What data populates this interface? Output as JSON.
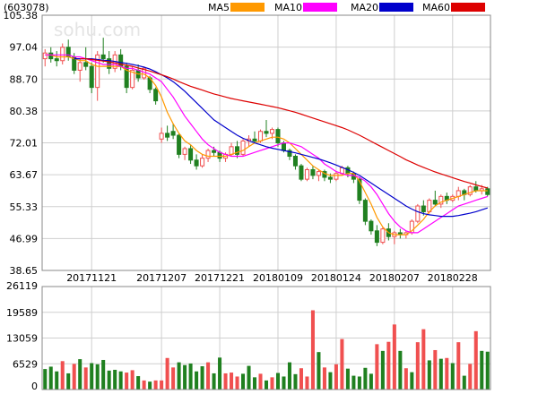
{
  "chart_data": [
    {
      "type": "candlestick",
      "code": "(603078)",
      "watermark": "sohu.com",
      "ylim": [
        38.65,
        105.38
      ],
      "ytick_labels": [
        "105.38",
        "97.04",
        "88.70",
        "80.38",
        "72.01",
        "63.67",
        "55.33",
        "46.99",
        "38.65"
      ],
      "xtick_labels": [
        "20171121",
        "20171207",
        "20171221",
        "20180109",
        "20180124",
        "20180207",
        "20180228"
      ],
      "xtick_index": [
        8,
        20,
        30,
        40,
        50,
        60,
        70
      ],
      "up_color": "#f05050",
      "down_color": "#208020",
      "ohlc": [
        [
          94.0,
          96.5,
          92.0,
          95.5
        ],
        [
          95.5,
          97.0,
          93.0,
          94.0
        ],
        [
          94.0,
          96.0,
          92.0,
          93.5
        ],
        [
          93.5,
          98.0,
          92.5,
          97.0
        ],
        [
          97.0,
          99.0,
          93.5,
          94.5
        ],
        [
          94.5,
          95.5,
          90.0,
          91.0
        ],
        [
          91.0,
          94.0,
          88.0,
          93.0
        ],
        [
          93.0,
          97.0,
          91.0,
          92.0
        ],
        [
          92.0,
          93.0,
          85.0,
          86.5
        ],
        [
          86.5,
          96.0,
          83.0,
          95.0
        ],
        [
          95.0,
          99.5,
          93.0,
          94.0
        ],
        [
          94.0,
          96.0,
          90.0,
          91.5
        ],
        [
          91.5,
          96.0,
          90.5,
          95.0
        ],
        [
          95.0,
          96.5,
          91.0,
          92.0
        ],
        [
          92.0,
          93.0,
          85.0,
          86.5
        ],
        [
          86.5,
          92.0,
          86.0,
          91.0
        ],
        [
          91.0,
          92.5,
          88.0,
          89.0
        ],
        [
          89.0,
          92.0,
          88.5,
          91.5
        ],
        [
          89.0,
          89.5,
          85.0,
          86.0
        ],
        [
          86.0,
          86.5,
          82.0,
          83.0
        ],
        [
          73.0,
          76.0,
          72.0,
          74.5
        ],
        [
          74.5,
          76.5,
          72.5,
          73.5
        ],
        [
          75.0,
          77.0,
          73.0,
          74.0
        ],
        [
          74.0,
          74.5,
          68.0,
          69.0
        ],
        [
          69.0,
          71.0,
          67.5,
          70.5
        ],
        [
          70.5,
          71.5,
          66.5,
          67.5
        ],
        [
          67.5,
          69.0,
          65.0,
          66.0
        ],
        [
          66.0,
          69.0,
          65.5,
          68.0
        ],
        [
          68.0,
          70.5,
          67.0,
          70.0
        ],
        [
          70.0,
          71.0,
          68.5,
          69.5
        ],
        [
          69.5,
          70.0,
          67.0,
          68.0
        ],
        [
          68.0,
          69.5,
          67.0,
          69.0
        ],
        [
          69.0,
          72.0,
          68.5,
          71.0
        ],
        [
          71.0,
          72.5,
          68.0,
          69.0
        ],
        [
          69.0,
          73.0,
          68.5,
          72.5
        ],
        [
          72.5,
          74.0,
          71.0,
          73.0
        ],
        [
          73.0,
          75.0,
          72.0,
          72.5
        ],
        [
          72.5,
          75.5,
          72.0,
          75.0
        ],
        [
          75.0,
          78.0,
          73.5,
          74.5
        ],
        [
          74.5,
          76.0,
          73.0,
          75.5
        ],
        [
          75.5,
          76.0,
          71.0,
          72.0
        ],
        [
          72.0,
          72.5,
          69.5,
          70.0
        ],
        [
          70.0,
          70.5,
          67.5,
          68.5
        ],
        [
          68.5,
          69.0,
          65.0,
          66.0
        ],
        [
          66.0,
          66.5,
          62.0,
          62.5
        ],
        [
          62.5,
          65.5,
          62.0,
          65.0
        ],
        [
          65.0,
          66.0,
          62.5,
          63.5
        ],
        [
          63.5,
          65.0,
          62.0,
          64.5
        ],
        [
          64.5,
          65.0,
          62.0,
          63.0
        ],
        [
          63.0,
          64.0,
          61.5,
          62.5
        ],
        [
          62.5,
          64.5,
          62.0,
          64.0
        ],
        [
          64.0,
          66.0,
          63.5,
          65.5
        ],
        [
          65.5,
          66.0,
          63.0,
          64.0
        ],
        [
          64.0,
          64.5,
          61.5,
          62.5
        ],
        [
          62.5,
          63.0,
          56.0,
          57.0
        ],
        [
          57.0,
          57.5,
          50.5,
          51.5
        ],
        [
          51.5,
          52.0,
          48.0,
          49.0
        ],
        [
          49.0,
          50.5,
          45.0,
          46.0
        ],
        [
          46.0,
          50.0,
          45.5,
          49.5
        ],
        [
          49.5,
          51.0,
          46.5,
          47.5
        ],
        [
          47.5,
          49.0,
          45.5,
          48.5
        ],
        [
          48.5,
          49.5,
          47.0,
          48.0
        ],
        [
          48.0,
          49.0,
          47.0,
          48.5
        ],
        [
          48.5,
          52.0,
          48.0,
          51.5
        ],
        [
          51.5,
          56.0,
          51.0,
          55.5
        ],
        [
          55.5,
          57.0,
          53.0,
          54.0
        ],
        [
          54.0,
          57.5,
          53.5,
          57.0
        ],
        [
          57.0,
          59.5,
          55.5,
          56.0
        ],
        [
          56.0,
          58.5,
          55.0,
          58.0
        ],
        [
          58.0,
          59.0,
          56.0,
          57.0
        ],
        [
          57.0,
          58.5,
          56.5,
          58.0
        ],
        [
          58.0,
          60.5,
          57.0,
          59.5
        ],
        [
          59.5,
          60.0,
          57.0,
          58.5
        ],
        [
          58.5,
          61.0,
          58.0,
          60.5
        ],
        [
          60.5,
          62.0,
          59.0,
          59.5
        ],
        [
          59.5,
          61.0,
          58.5,
          60.0
        ],
        [
          60.0,
          60.5,
          58.0,
          58.5
        ]
      ],
      "ma": [
        {
          "name": "MA5",
          "color": "#ff9900",
          "values": [
            95,
            95,
            94.5,
            94.5,
            94.5,
            94,
            93.5,
            93.5,
            92.5,
            92,
            92,
            92,
            92,
            92,
            91,
            90.5,
            90,
            90,
            89,
            87,
            84,
            80,
            77,
            74.5,
            72.5,
            71.5,
            70,
            69,
            68.5,
            68.5,
            68.5,
            68.5,
            69,
            69.5,
            70,
            71,
            72,
            72.5,
            73,
            73.5,
            73.5,
            73,
            72,
            70.5,
            69,
            67.5,
            66,
            65,
            64,
            63.5,
            63.5,
            63.5,
            64,
            64,
            62,
            59,
            56,
            52.5,
            50,
            48.5,
            48,
            48,
            48,
            49,
            50.5,
            52,
            54,
            55.5,
            56.5,
            57,
            57.5,
            58,
            58.5,
            59,
            59.5,
            59.5,
            59.5
          ]
        },
        {
          "name": "MA10",
          "color": "#ff00ff",
          "values": [
            95,
            95,
            95,
            95,
            95,
            94.5,
            94.5,
            94,
            93.5,
            93,
            92.5,
            92.5,
            92.5,
            92,
            91.5,
            91.5,
            91,
            90.5,
            90,
            89,
            88,
            86,
            84,
            81.5,
            79,
            77,
            75,
            73,
            71.5,
            70.5,
            69.5,
            69,
            68.5,
            68.5,
            68.5,
            69,
            69.5,
            70,
            70.5,
            71,
            71.5,
            72,
            72,
            71.5,
            71,
            70,
            69,
            68,
            66.5,
            65.5,
            64.5,
            64,
            63.5,
            63.5,
            63,
            62,
            60.5,
            58.5,
            56,
            53.5,
            51.5,
            50,
            49,
            48.5,
            48.5,
            49.5,
            50.5,
            51.5,
            52.5,
            53.5,
            54.5,
            55.5,
            56,
            56.5,
            57,
            57.5,
            58
          ]
        },
        {
          "name": "MA20",
          "color": "#0000cc",
          "values": [
            null,
            null,
            null,
            null,
            null,
            94,
            94,
            94,
            94,
            93.8,
            93.6,
            93.5,
            93.3,
            93,
            92.8,
            92.5,
            92.2,
            91.8,
            91.3,
            90.6,
            89.8,
            89,
            88,
            86.8,
            85.5,
            84,
            82.5,
            81,
            79.5,
            78,
            77,
            76,
            75,
            74,
            73.2,
            72.6,
            72,
            71.5,
            71,
            70.6,
            70.3,
            70,
            69.7,
            69.4,
            69,
            68.6,
            68.2,
            67.8,
            67.3,
            66.8,
            66.2,
            65.6,
            65,
            64.3,
            63.5,
            62.5,
            61.5,
            60.5,
            59.5,
            58.5,
            57.5,
            56.5,
            55.5,
            54.7,
            54,
            53.5,
            53.2,
            53,
            52.8,
            52.8,
            52.8,
            53,
            53.3,
            53.6,
            54,
            54.5,
            55
          ]
        },
        {
          "name": "MA60",
          "color": "#dd0000",
          "values": [
            null,
            null,
            null,
            null,
            null,
            null,
            94,
            94,
            93.8,
            93.6,
            93.4,
            93.2,
            92.9,
            92.6,
            92.3,
            92,
            91.6,
            91.2,
            90.8,
            90.3,
            89.8,
            89.3,
            88.7,
            88,
            87.4,
            86.8,
            86.3,
            85.8,
            85.3,
            84.8,
            84.4,
            84,
            83.6,
            83.3,
            83,
            82.7,
            82.4,
            82.1,
            81.8,
            81.5,
            81.2,
            80.8,
            80.4,
            80,
            79.5,
            79,
            78.5,
            78,
            77.5,
            77,
            76.5,
            76,
            75.4,
            74.7,
            74,
            73.2,
            72.4,
            71.6,
            70.8,
            70,
            69.2,
            68.4,
            67.6,
            66.9,
            66.2,
            65.6,
            65,
            64.4,
            63.9,
            63.4,
            62.9,
            62.4,
            61.9,
            61.5,
            61,
            60.6,
            60.2
          ]
        }
      ]
    },
    {
      "type": "bar",
      "ylim": [
        0,
        26119
      ],
      "ytick_labels": [
        "26119",
        "19589",
        "13059",
        "6529",
        "0"
      ],
      "values": [
        5200,
        5800,
        4600,
        7200,
        4100,
        6500,
        7700,
        5600,
        6700,
        6400,
        7500,
        4800,
        5000,
        4600,
        4300,
        4900,
        3400,
        2300,
        2000,
        2300,
        2300,
        8000,
        5600,
        6900,
        6200,
        6600,
        4600,
        5900,
        6900,
        4100,
        8100,
        4100,
        4300,
        3300,
        4000,
        6000,
        3100,
        4000,
        2300,
        3100,
        4200,
        3300,
        6900,
        3900,
        5400,
        3300,
        20100,
        9500,
        5600,
        4400,
        6400,
        12800,
        5300,
        3500,
        3300,
        5500,
        4000,
        11500,
        9800,
        12100,
        16500,
        9800,
        5400,
        4400,
        12000,
        15300,
        7400,
        10000,
        7800,
        8000,
        6700,
        12000,
        3500,
        6500,
        14800,
        9800,
        9600
      ],
      "colors": [
        "d",
        "d",
        "d",
        "u",
        "d",
        "u",
        "d",
        "u",
        "d",
        "d",
        "d",
        "d",
        "d",
        "d",
        "u",
        "u",
        "d",
        "u",
        "d",
        "u",
        "u",
        "u",
        "u",
        "d",
        "d",
        "d",
        "d",
        "d",
        "u",
        "d",
        "d",
        "u",
        "u",
        "u",
        "d",
        "d",
        "d",
        "u",
        "d",
        "u",
        "d",
        "d",
        "d",
        "d",
        "u",
        "u",
        "u",
        "d",
        "u",
        "d",
        "u",
        "u",
        "d",
        "d",
        "d",
        "d",
        "d",
        "u",
        "d",
        "u",
        "u",
        "d",
        "u",
        "d",
        "u",
        "u",
        "d",
        "u",
        "d",
        "u",
        "d",
        "u",
        "d",
        "u",
        "u",
        "d",
        "d"
      ]
    }
  ],
  "legend": [
    {
      "label": "MA5",
      "color": "#ff9900"
    },
    {
      "label": "MA10",
      "color": "#ff00ff"
    },
    {
      "label": "MA20",
      "color": "#0000cc"
    },
    {
      "label": "MA60",
      "color": "#dd0000"
    }
  ]
}
